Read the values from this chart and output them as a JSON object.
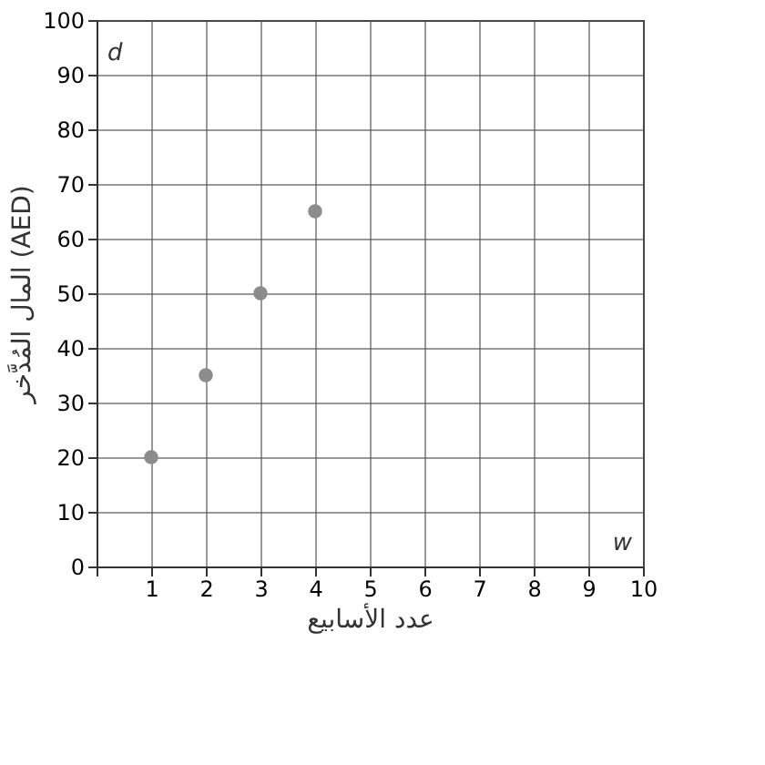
{
  "chart_data": {
    "type": "scatter",
    "xlabel": "عدد الأسابيع",
    "ylabel": "المال المُدَّخر (AED)",
    "x": [
      1,
      2,
      3,
      4
    ],
    "series": [
      {
        "color": "#8c8c8c",
        "values": [
          20,
          35,
          50,
          65
        ]
      }
    ],
    "xlim": [
      0,
      10
    ],
    "ylim": [
      0,
      100
    ],
    "xticks": [
      {
        "value": 0,
        "label": null
      },
      1,
      2,
      3,
      4,
      5,
      6,
      7,
      8,
      9,
      10
    ],
    "yticks": [
      0,
      10,
      20,
      30,
      40,
      50,
      60,
      70,
      80,
      90,
      100
    ],
    "annotations": [
      "d",
      "w"
    ],
    "grid": true,
    "marker": "circle"
  }
}
